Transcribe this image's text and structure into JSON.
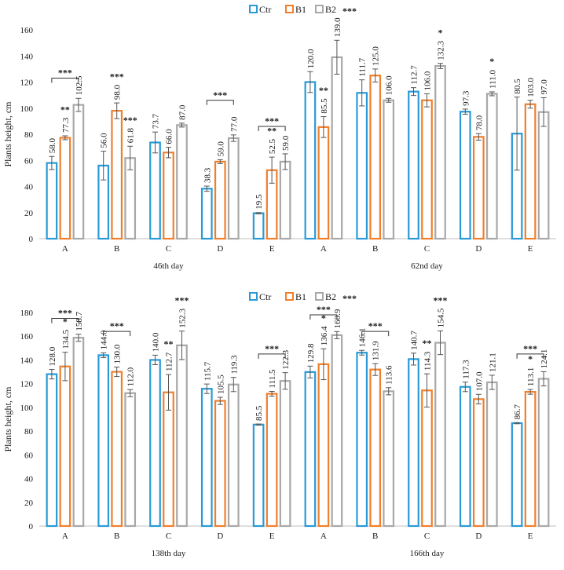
{
  "colors": {
    "Ctr": "#2a9ad6",
    "B1": "#f07f2b",
    "B2": "#a8a8a8"
  },
  "chart_data": [
    {
      "type": "bar",
      "title": "",
      "ylabel": "Plants height, cm",
      "ylim": [
        0,
        160
      ],
      "yticks": [
        0,
        20,
        40,
        60,
        80,
        100,
        120,
        140,
        160
      ],
      "legend": [
        "Ctr",
        "B1",
        "B2"
      ],
      "legend_extra": "***",
      "legend_extra_after": "B2",
      "periods": [
        "46th day",
        "62nd day"
      ],
      "groups": [
        {
          "category": "A",
          "period": 0,
          "values": [
            58.0,
            77.3,
            102.5
          ],
          "errors": [
            5,
            1.5,
            5
          ],
          "labels": [
            "58.0",
            "77.3",
            "102.5"
          ],
          "marks": [
            "",
            "**",
            ""
          ]
        },
        {
          "category": "B",
          "period": 0,
          "values": [
            56.0,
            98.0,
            61.8
          ],
          "errors": [
            11,
            6,
            9
          ],
          "labels": [
            "56.0",
            "98.0",
            "61.8"
          ],
          "marks": [
            "",
            "***",
            "***"
          ]
        },
        {
          "category": "C",
          "period": 0,
          "values": [
            73.7,
            66.0,
            87.0
          ],
          "errors": [
            8,
            4,
            1.5
          ],
          "labels": [
            "73.7",
            "66.0",
            "87.0"
          ],
          "marks": [
            "",
            "",
            ""
          ]
        },
        {
          "category": "D",
          "period": 0,
          "values": [
            38.3,
            59.0,
            77.0
          ],
          "errors": [
            2,
            1.5,
            2.5
          ],
          "labels": [
            "38.3",
            "59.0",
            "77.0"
          ],
          "marks": [
            "",
            "",
            ""
          ]
        },
        {
          "category": "E",
          "period": 0,
          "values": [
            19.5,
            52.5,
            59.0
          ],
          "errors": [
            0.5,
            10,
            6
          ],
          "labels": [
            "19.5",
            "52.5",
            "59.0"
          ],
          "marks": [
            "",
            "**",
            ""
          ]
        },
        {
          "category": "A",
          "period": 1,
          "values": [
            120.0,
            85.5,
            139.0
          ],
          "errors": [
            8,
            8,
            13
          ],
          "labels": [
            "120.0",
            "85.5",
            "139.0"
          ],
          "marks": [
            "",
            "**",
            ""
          ]
        },
        {
          "category": "B",
          "period": 1,
          "values": [
            111.7,
            125.0,
            106.0
          ],
          "errors": [
            10,
            5,
            1.5
          ],
          "labels": [
            "111.7",
            "125.0",
            "106.0"
          ],
          "marks": [
            "",
            "",
            ""
          ]
        },
        {
          "category": "C",
          "period": 1,
          "values": [
            112.7,
            106.0,
            132.3
          ],
          "errors": [
            3,
            5,
            2
          ],
          "labels": [
            "112.7",
            "106.0",
            "132.3"
          ],
          "marks": [
            "",
            "",
            "*"
          ]
        },
        {
          "category": "D",
          "period": 1,
          "values": [
            97.3,
            78.0,
            111.0
          ],
          "errors": [
            2,
            2.5,
            1.5
          ],
          "labels": [
            "97.3",
            "78.0",
            "111.0"
          ],
          "marks": [
            "",
            "",
            "*"
          ]
        },
        {
          "category": "E",
          "period": 1,
          "values": [
            80.5,
            103.0,
            97.0
          ],
          "errors": [
            28,
            3,
            11
          ],
          "labels": [
            "80.5",
            "103.0",
            "97.0"
          ],
          "marks": [
            "",
            "",
            ""
          ]
        }
      ],
      "brackets": [
        {
          "group": 0,
          "from": 0,
          "to": 2,
          "value": 123,
          "text": "***"
        },
        {
          "group": 3,
          "from": 0,
          "to": 2,
          "value": 106,
          "text": "***"
        },
        {
          "group": 4,
          "from": 0,
          "to": 2,
          "value": 86,
          "text": "***"
        }
      ]
    },
    {
      "type": "bar",
      "title": "",
      "ylabel": "Plants height, cm",
      "ylim": [
        0,
        180
      ],
      "yticks": [
        0,
        20,
        40,
        60,
        80,
        100,
        120,
        140,
        160,
        180
      ],
      "legend": [
        "Ctr",
        "B1",
        "B2"
      ],
      "legend_extra": "***",
      "legend_extra_after": "B2",
      "periods": [
        "138th day",
        "166th day"
      ],
      "groups": [
        {
          "category": "A",
          "period": 0,
          "values": [
            128.0,
            134.5,
            158.7
          ],
          "errors": [
            4,
            12,
            3
          ],
          "labels": [
            "128.0",
            "134.5",
            "158.7"
          ],
          "marks": [
            "",
            "*",
            ""
          ]
        },
        {
          "category": "B",
          "period": 0,
          "values": [
            144.0,
            130.0,
            112.0
          ],
          "errors": [
            2,
            4,
            3
          ],
          "labels": [
            "144.0",
            "130.0",
            "112.0"
          ],
          "marks": [
            "",
            "",
            ""
          ]
        },
        {
          "category": "C",
          "period": 0,
          "values": [
            140.0,
            112.7,
            152.3
          ],
          "errors": [
            4,
            15,
            12
          ],
          "labels": [
            "140.0",
            "112.7",
            "152.3"
          ],
          "marks": [
            "",
            "**",
            "***"
          ]
        },
        {
          "category": "D",
          "period": 0,
          "values": [
            115.7,
            105.5,
            119.3
          ],
          "errors": [
            4,
            3,
            6
          ],
          "labels": [
            "115.7",
            "105.5",
            "119.3"
          ],
          "marks": [
            "",
            "",
            ""
          ]
        },
        {
          "category": "E",
          "period": 0,
          "values": [
            85.5,
            111.5,
            122.3
          ],
          "errors": [
            0.5,
            2,
            7
          ],
          "labels": [
            "85.5",
            "111.5",
            "122.3"
          ],
          "marks": [
            "",
            "",
            ""
          ]
        },
        {
          "category": "A",
          "period": 1,
          "values": [
            129.8,
            136.4,
            160.9
          ],
          "errors": [
            5,
            13,
            3
          ],
          "labels": [
            "129.8",
            "136.4",
            "160.9"
          ],
          "marks": [
            "",
            "*",
            ""
          ]
        },
        {
          "category": "B",
          "period": 1,
          "values": [
            146.1,
            131.9,
            113.6
          ],
          "errors": [
            2,
            5,
            3
          ],
          "labels": [
            "146.1",
            "131.9",
            "113.6"
          ],
          "marks": [
            "",
            "",
            ""
          ]
        },
        {
          "category": "C",
          "period": 1,
          "values": [
            140.7,
            114.3,
            154.5
          ],
          "errors": [
            5,
            14,
            10
          ],
          "labels": [
            "140.7",
            "114.3",
            "154.5"
          ],
          "marks": [
            "",
            "**",
            "***"
          ]
        },
        {
          "category": "D",
          "period": 1,
          "values": [
            117.3,
            107.0,
            121.1
          ],
          "errors": [
            4,
            4,
            6
          ],
          "labels": [
            "117.3",
            "107.0",
            "121.1"
          ],
          "marks": [
            "",
            "",
            ""
          ]
        },
        {
          "category": "E",
          "period": 1,
          "values": [
            86.7,
            113.1,
            124.1
          ],
          "errors": [
            0.5,
            2,
            6
          ],
          "labels": [
            "86.7",
            "113.1",
            "124.1"
          ],
          "marks": [
            "",
            "*",
            ""
          ]
        }
      ],
      "brackets": [
        {
          "group": 0,
          "from": 0,
          "to": 2,
          "value": 175,
          "text": "***"
        },
        {
          "group": 1,
          "from": 0,
          "to": 2,
          "value": 164,
          "text": "***"
        },
        {
          "group": 4,
          "from": 0,
          "to": 2,
          "value": 145,
          "text": "***"
        },
        {
          "group": 5,
          "from": 0,
          "to": 2,
          "value": 178,
          "text": "***"
        },
        {
          "group": 6,
          "from": 0,
          "to": 2,
          "value": 164,
          "text": "***"
        },
        {
          "group": 9,
          "from": 0,
          "to": 2,
          "value": 145,
          "text": "***"
        }
      ]
    }
  ]
}
